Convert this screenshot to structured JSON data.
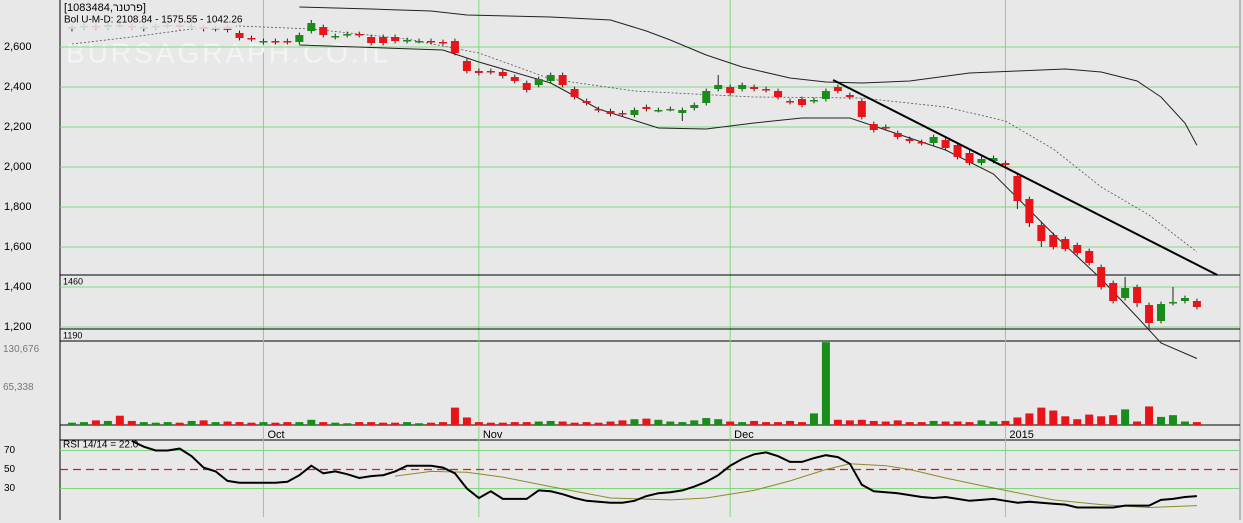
{
  "chart_data": [
    {
      "type": "candlestick",
      "title": "[1083484,פרטנר]",
      "subtitle": "Bol U-M-D: 2108.84 - 1575.55 - 1042.26",
      "watermark": "BURSAGRAPH.CO.IL",
      "up_color": "#1a8c1a",
      "down_color": "#e8141a",
      "xlim": [
        -1,
        97.6
      ],
      "xticks": [
        {
          "value": 16,
          "label": "Oct"
        },
        {
          "value": 34,
          "label": "Nov"
        },
        {
          "value": 55,
          "label": "Dec"
        },
        {
          "value": 78,
          "label": "2015"
        }
      ],
      "ylim": [
        1185,
        2835
      ],
      "yticks": [
        {
          "value": 1200,
          "label": "1,200"
        },
        {
          "value": 1400,
          "label": "1,400"
        },
        {
          "value": 1600,
          "label": "1,600"
        },
        {
          "value": 1800,
          "label": "1,800"
        },
        {
          "value": 2000,
          "label": "2,000"
        },
        {
          "value": 2200,
          "label": "2,200"
        },
        {
          "value": 2400,
          "label": "2,400"
        },
        {
          "value": 2600,
          "label": "2,600"
        }
      ],
      "grid": true,
      "open": [
        2690,
        2700,
        2705,
        2700,
        2710,
        2705,
        2690,
        2700,
        2705,
        2710,
        2700,
        2700,
        2690,
        2700,
        2670,
        2645,
        2625,
        2630,
        2630,
        2625,
        2680,
        2700,
        2650,
        2660,
        2665,
        2650,
        2650,
        2650,
        2630,
        2630,
        2630,
        2625,
        2630,
        2530,
        2480,
        2480,
        2475,
        2450,
        2420,
        2410,
        2430,
        2460,
        2390,
        2330,
        2290,
        2280,
        2270,
        2260,
        2300,
        2285,
        2290,
        2270,
        2295,
        2320,
        2390,
        2400,
        2390,
        2400,
        2390,
        2380,
        2330,
        2340,
        2330,
        2340,
        2400,
        2360,
        2330,
        2215,
        2200,
        2170,
        2140,
        2125,
        2120,
        2135,
        2110,
        2070,
        2020,
        2030,
        2020,
        1955,
        1840,
        1710,
        1660,
        1640,
        1610,
        1580,
        1500,
        1420,
        1345,
        1400,
        1310,
        1230,
        1320,
        1330,
        1330
      ],
      "high": [
        2712,
        2717,
        2717,
        2722,
        2722,
        2717,
        2712,
        2717,
        2722,
        2722,
        2760,
        2712,
        2707,
        2712,
        2682,
        2657,
        2642,
        2642,
        2642,
        2672,
        2735,
        2712,
        2667,
        2677,
        2677,
        2662,
        2662,
        2662,
        2647,
        2642,
        2642,
        2637,
        2642,
        2542,
        2492,
        2492,
        2487,
        2462,
        2432,
        2452,
        2472,
        2472,
        2402,
        2342,
        2302,
        2292,
        2282,
        2297,
        2312,
        2297,
        2302,
        2297,
        2322,
        2392,
        2460,
        2412,
        2422,
        2412,
        2402,
        2392,
        2342,
        2352,
        2347,
        2392,
        2412,
        2372,
        2342,
        2227,
        2212,
        2182,
        2152,
        2137,
        2162,
        2147,
        2122,
        2082,
        2052,
        2057,
        2032,
        1967,
        1852,
        1722,
        1672,
        1652,
        1622,
        1592,
        1512,
        1432,
        1450,
        1412,
        1322,
        1327,
        1400,
        1357,
        1342
      ],
      "low": [
        2678,
        2688,
        2688,
        2688,
        2693,
        2688,
        2678,
        2688,
        2693,
        2688,
        2688,
        2678,
        2678,
        2673,
        2633,
        2628,
        2613,
        2613,
        2613,
        2613,
        2668,
        2648,
        2638,
        2648,
        2648,
        2608,
        2608,
        2618,
        2618,
        2618,
        2613,
        2608,
        2558,
        2468,
        2458,
        2463,
        2443,
        2418,
        2373,
        2398,
        2418,
        2398,
        2338,
        2308,
        2273,
        2253,
        2253,
        2248,
        2278,
        2273,
        2278,
        2230,
        2283,
        2308,
        2378,
        2358,
        2378,
        2378,
        2373,
        2338,
        2313,
        2298,
        2318,
        2328,
        2368,
        2338,
        2238,
        2173,
        2183,
        2138,
        2118,
        2108,
        2108,
        2083,
        2038,
        2008,
        2008,
        2018,
        1998,
        1790,
        1700,
        1600,
        1588,
        1578,
        1558,
        1508,
        1388,
        1318,
        1333,
        1300,
        1190,
        1218,
        1308,
        1318,
        1288
      ],
      "close": [
        2700,
        2705,
        2700,
        2710,
        2705,
        2700,
        2700,
        2705,
        2710,
        2700,
        2705,
        2690,
        2695,
        2685,
        2645,
        2640,
        2630,
        2625,
        2625,
        2660,
        2720,
        2660,
        2655,
        2665,
        2660,
        2620,
        2620,
        2630,
        2635,
        2630,
        2625,
        2620,
        2570,
        2480,
        2470,
        2475,
        2455,
        2430,
        2385,
        2440,
        2460,
        2410,
        2350,
        2320,
        2285,
        2265,
        2265,
        2285,
        2290,
        2285,
        2290,
        2285,
        2310,
        2380,
        2410,
        2370,
        2410,
        2390,
        2385,
        2350,
        2325,
        2310,
        2335,
        2380,
        2380,
        2350,
        2250,
        2185,
        2195,
        2150,
        2130,
        2120,
        2150,
        2095,
        2050,
        2020,
        2040,
        2045,
        2010,
        1830,
        1720,
        1630,
        1600,
        1590,
        1570,
        1520,
        1400,
        1330,
        1395,
        1320,
        1220,
        1315,
        1325,
        1345,
        1300
      ],
      "bands": [
        {
          "color": "#222222",
          "dash": false,
          "x": [
            19,
            25,
            30,
            33,
            40,
            45,
            48,
            50,
            53,
            56,
            60,
            63,
            66,
            70,
            75,
            79,
            83,
            86,
            89,
            91,
            93,
            94
          ],
          "values": [
            2800,
            2790,
            2780,
            2760,
            2750,
            2735,
            2680,
            2635,
            2560,
            2500,
            2445,
            2425,
            2420,
            2430,
            2470,
            2480,
            2490,
            2475,
            2430,
            2350,
            2220,
            2108.84
          ]
        },
        {
          "color": "#555555",
          "dash": true,
          "x": [
            0,
            5,
            10,
            14,
            20,
            28,
            34,
            40,
            47,
            57,
            66,
            73,
            78,
            82,
            86,
            90,
            94
          ],
          "values": [
            2615,
            2650,
            2690,
            2705,
            2690,
            2640,
            2570,
            2440,
            2380,
            2350,
            2345,
            2300,
            2230,
            2090,
            1900,
            1760,
            1575.55
          ]
        },
        {
          "color": "#222222",
          "dash": false,
          "x": [
            19,
            31,
            34,
            40,
            44,
            49,
            53,
            57,
            61,
            65,
            69,
            73,
            77,
            82,
            86,
            89,
            91,
            94
          ],
          "values": [
            2610,
            2585,
            2525,
            2420,
            2290,
            2195,
            2190,
            2220,
            2245,
            2245,
            2165,
            2085,
            1965,
            1665,
            1440,
            1250,
            1120,
            1042.26
          ]
        }
      ],
      "trendline": {
        "color": "#000000",
        "x": [
          63.6,
          95.7
        ],
        "values": [
          2435,
          1460
        ]
      },
      "hlines": [
        1460,
        1190
      ]
    },
    {
      "type": "bar",
      "ylim": [
        0,
        145000
      ],
      "yticks": [
        {
          "value": 65338,
          "label": "65,338"
        },
        {
          "value": 130676,
          "label": "130,676"
        }
      ],
      "values": [
        4000,
        5000,
        8000,
        7000,
        16000,
        7000,
        5000,
        4000,
        5000,
        4000,
        7000,
        8000,
        5000,
        6000,
        5000,
        4000,
        5000,
        4000,
        5000,
        5000,
        9000,
        5000,
        4000,
        3000,
        5000,
        5000,
        4000,
        4000,
        5000,
        3000,
        4000,
        5000,
        30000,
        13000,
        5000,
        4000,
        4000,
        5000,
        5000,
        6000,
        7000,
        6000,
        4000,
        5000,
        4000,
        6000,
        8000,
        10000,
        11000,
        9000,
        6000,
        5000,
        8000,
        12000,
        10000,
        6000,
        5000,
        7000,
        5000,
        5000,
        7000,
        5000,
        20000,
        143000,
        9000,
        8000,
        9000,
        7000,
        6000,
        8000,
        5000,
        5000,
        7000,
        6000,
        6000,
        5000,
        8000,
        6000,
        7000,
        13000,
        20000,
        30000,
        25000,
        15000,
        10000,
        18000,
        15000,
        17000,
        27000,
        6000,
        32000,
        14000,
        17000,
        6000,
        5000
      ]
    },
    {
      "type": "line",
      "title": "RSI 14/14 = 22.0",
      "ylim": [
        0,
        81
      ],
      "yticks": [
        30,
        50,
        70
      ],
      "hline": 50,
      "hline_color": "#e8141a",
      "series": [
        {
          "color": "#000000",
          "values": [
            null,
            null,
            null,
            null,
            null,
            80,
            74,
            70,
            70,
            72,
            64,
            52,
            48,
            38,
            36,
            36,
            36,
            36,
            37,
            44,
            54,
            46,
            48,
            45,
            41,
            43,
            44,
            48,
            54,
            54,
            54,
            52,
            46,
            30,
            20,
            27,
            19,
            19,
            19,
            28,
            27,
            24,
            20,
            17,
            16,
            15,
            15,
            17,
            22,
            25,
            26,
            28,
            32,
            37,
            44,
            54,
            61,
            66,
            68,
            64,
            58,
            58,
            62,
            65,
            63,
            56,
            34,
            27,
            26,
            25,
            23,
            21,
            20,
            21,
            19,
            17,
            18,
            19,
            17,
            15,
            16,
            15,
            14,
            13,
            10,
            10,
            10,
            10,
            12,
            12,
            12,
            18,
            19,
            21,
            22.0
          ]
        },
        {
          "color": "#8b8b2a",
          "x": [
            27,
            30,
            33,
            36,
            40,
            45,
            50,
            53,
            57,
            60,
            63,
            65,
            68,
            70,
            73,
            76,
            78,
            82,
            86,
            90,
            94
          ],
          "values": [
            43,
            48,
            47,
            42,
            32,
            20,
            18,
            20,
            28,
            38,
            50,
            56,
            54,
            50,
            41,
            33,
            28,
            18,
            13,
            10,
            12
          ]
        }
      ]
    }
  ]
}
